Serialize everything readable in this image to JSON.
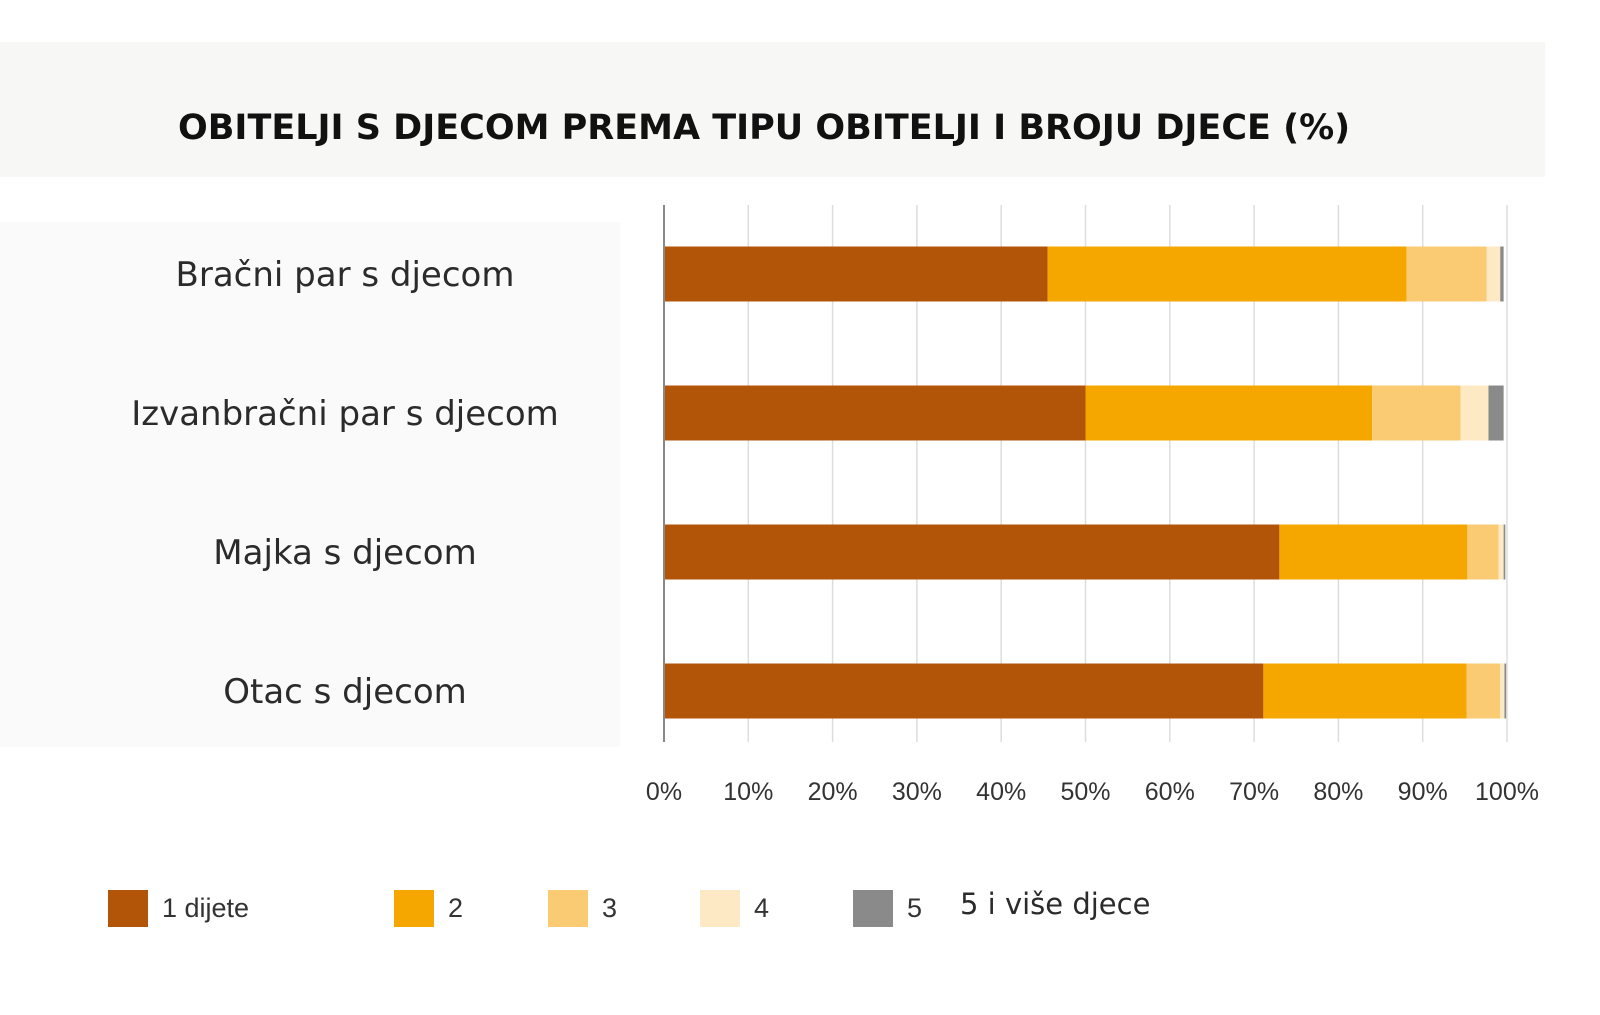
{
  "chart_data": {
    "type": "bar",
    "orientation": "horizontal",
    "stacked": true,
    "title": "OBITELJI S DJECOM PREMA TIPU OBITELJI I BROJU DJECE (%)",
    "categories": [
      "Bračni par s djecom",
      "Izvanbračni par s djecom",
      "Majka s djecom",
      "Otac s djecom"
    ],
    "series": [
      {
        "name": "1 dijete",
        "color": "#b35509",
        "values": [
          45.5,
          50,
          73,
          71.1
        ]
      },
      {
        "name": "2",
        "color": "#f5a700",
        "values": [
          42.6,
          34,
          22.3,
          24.1
        ]
      },
      {
        "name": "3",
        "color": "#fbcb74",
        "values": [
          9.5,
          10.5,
          3.7,
          4
        ]
      },
      {
        "name": "4",
        "color": "#fde9c3",
        "values": [
          1.6,
          3.3,
          0.6,
          0.5
        ]
      },
      {
        "name": "5",
        "color": "#8a8a8a",
        "values": [
          0.4,
          1.8,
          0.2,
          0.2
        ]
      }
    ],
    "x_ticks": [
      "0%",
      "10%",
      "20%",
      "30%",
      "40%",
      "50%",
      "60%",
      "70%",
      "80%",
      "90%",
      "100%"
    ],
    "xlim": [
      0,
      100
    ],
    "grid": "vertical",
    "legend_position": "bottom",
    "legend_note": "5 i više djece"
  }
}
